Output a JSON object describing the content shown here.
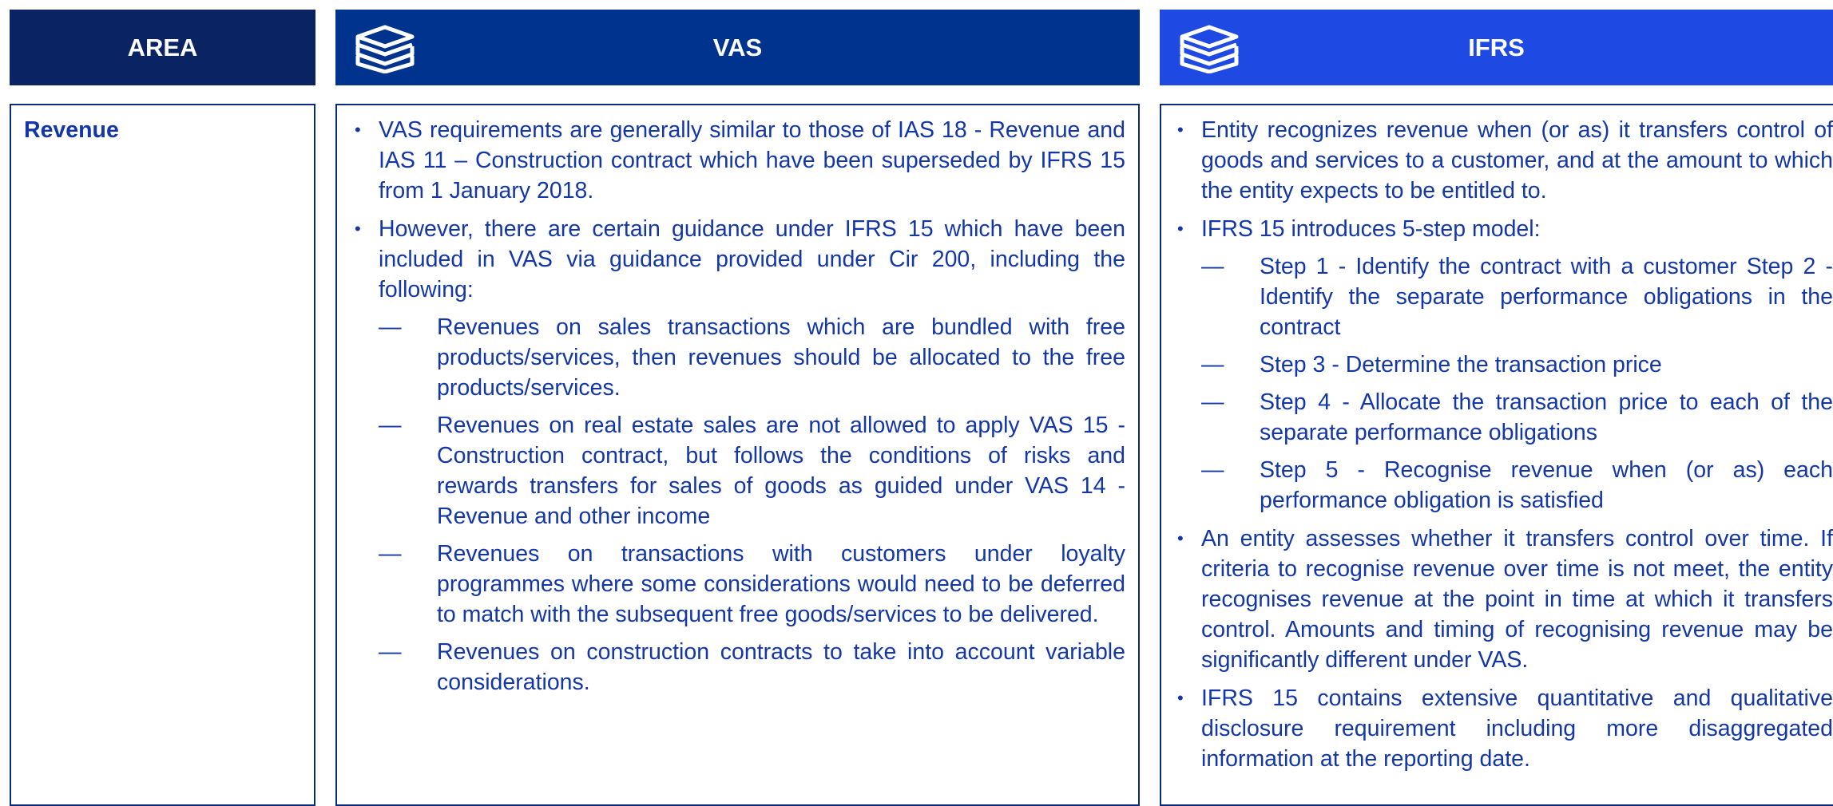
{
  "header": {
    "area": "AREA",
    "vas": "VAS",
    "ifrs": "IFRS"
  },
  "row": {
    "area": "Revenue",
    "vas": [
      {
        "text": "VAS requirements are generally similar to those of IAS 18 - Revenue and IAS 11 – Construction contract which have been superseded by IFRS 15 from 1 January 2018.",
        "subitems": []
      },
      {
        "text": "However, there are certain guidance under IFRS 15 which have been included in VAS via guidance provided under Cir 200, including the following:",
        "subitems": [
          "Revenues on sales transactions which are bundled with free products/services, then revenues should be allocated to the free products/services.",
          "Revenues on real estate sales are not allowed to apply VAS 15 -  Construction contract, but follows the conditions of risks and rewards transfers for sales of goods as guided under VAS 14  - Revenue and other income",
          "Revenues on transactions with customers under loyalty programmes where some considerations would need to be deferred to match with the subsequent free goods/services to be delivered.",
          "Revenues on construction contracts to take into account variable considerations."
        ]
      }
    ],
    "ifrs": [
      {
        "text": "Entity recognizes revenue when (or as) it transfers control of goods and services to a customer, and at the amount to which the entity expects to be entitled to.",
        "subitems": []
      },
      {
        "text": "IFRS 15 introduces 5-step model:",
        "subitems": [
          "Step 1 - Identify the contract with a customer Step 2 - Identify the separate performance obligations in the contract",
          "Step 3 - Determine the transaction price",
          "Step 4 - Allocate the transaction price to each of the separate performance obligations",
          "Step 5 - Recognise revenue when (or as) each performance obligation is satisfied"
        ]
      },
      {
        "text": "An entity assesses whether it transfers control over time. If criteria to recognise revenue over time is not meet, the entity recognises revenue at the point in time at which it transfers control. Amounts and timing of recognising revenue may be significantly different under VAS.",
        "subitems": []
      },
      {
        "text": "IFRS 15 contains extensive quantitative and qualitative disclosure requirement including more disaggregated information at the reporting date.",
        "subitems": []
      }
    ]
  }
}
